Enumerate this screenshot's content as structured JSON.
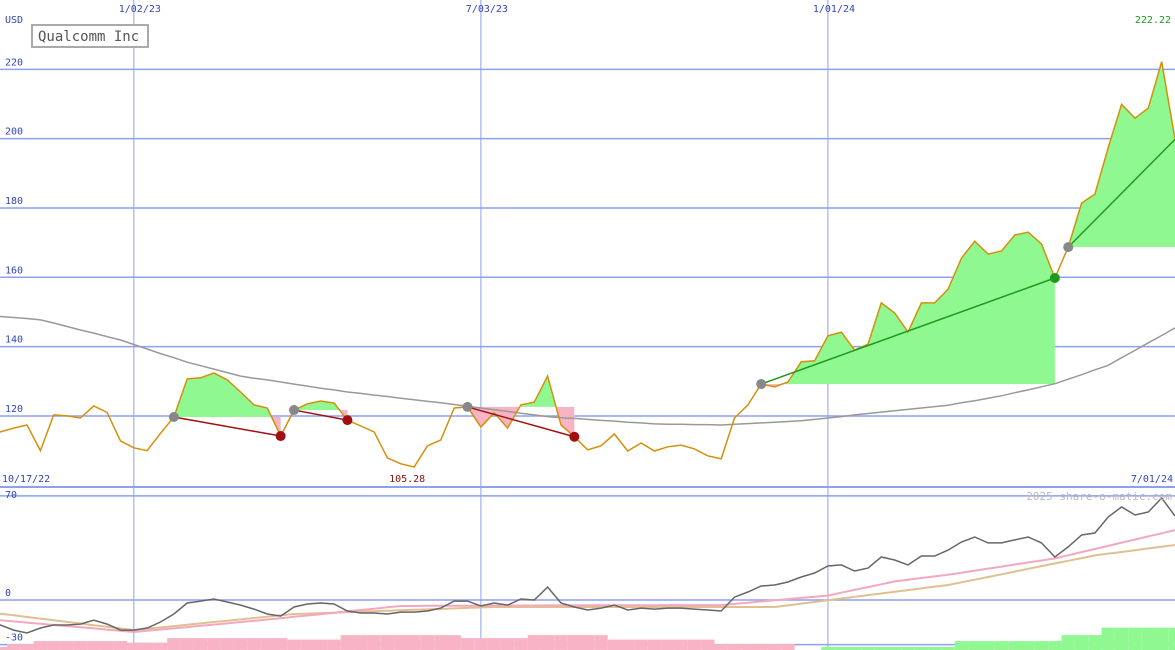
{
  "chart_data": [
    {
      "type": "line",
      "title": "Qualcomm Inc",
      "y_label": "USD",
      "low_label": "105.28",
      "high_label": "222.22",
      "categories": [
        "10/17/22",
        null,
        null,
        null,
        null,
        null,
        null,
        null,
        null,
        null,
        null,
        "1/02/23",
        null,
        null,
        null,
        null,
        null,
        null,
        null,
        null,
        null,
        null,
        null,
        null,
        null,
        null,
        null,
        null,
        null,
        null,
        null,
        null,
        null,
        null,
        null,
        null,
        null,
        "7/03/23",
        null,
        null,
        null,
        null,
        null,
        null,
        null,
        null,
        null,
        null,
        null,
        null,
        null,
        null,
        null,
        null,
        null,
        null,
        null,
        null,
        null,
        null,
        null,
        null,
        null,
        "1/01/24",
        null,
        null,
        null,
        null,
        null,
        null,
        null,
        null,
        null,
        null,
        null,
        null,
        null,
        null,
        null,
        null,
        null,
        null,
        null,
        null,
        null,
        null,
        null,
        null,
        null,
        "7/01/24"
      ],
      "ylim": [
        99.5,
        240
      ],
      "yticks": [
        120,
        140,
        160,
        180,
        200,
        220
      ],
      "grid": true,
      "gain_color": "#90f890",
      "loss_color": "#f8b4c4",
      "start_dot_color": "#888888",
      "series": [
        {
          "color": "#999999",
          "values": [
            149.0,
            148.7,
            148.4,
            148.1,
            147.7,
            146.8,
            145.8,
            144.8,
            143.9,
            142.9,
            141.9,
            140.6,
            139.3,
            138.0,
            136.8,
            135.5,
            134.5,
            133.5,
            132.5,
            131.5,
            130.9,
            130.4,
            129.8,
            129.2,
            128.6,
            128.0,
            127.5,
            126.9,
            126.5,
            126.0,
            125.6,
            125.1,
            124.7,
            124.2,
            123.8,
            123.3,
            122.8,
            122.3,
            121.8,
            121.3,
            120.8,
            120.3,
            119.8,
            119.5,
            119.3,
            119.0,
            118.7,
            118.5,
            118.2,
            118.0,
            117.7,
            117.6,
            117.6,
            117.5,
            117.5,
            117.4,
            117.6,
            117.8,
            118.0,
            118.2,
            118.4,
            118.6,
            119.0,
            119.4,
            119.8,
            120.3,
            120.7,
            121.1,
            121.5,
            121.9,
            122.3,
            122.7,
            123.1,
            123.8,
            124.4,
            125.1,
            125.8,
            126.7,
            127.5,
            128.4,
            129.3,
            130.6,
            131.9,
            133.3,
            134.6,
            136.8,
            138.9,
            141.1,
            143.2,
            145.4
          ]
        },
        {
          "color": "#d4900a",
          "values": [
            113,
            115.4,
            116.5,
            117.4,
            110,
            120.3,
            120,
            119.4,
            122.9,
            121,
            112.8,
            110.8,
            110,
            115,
            119.7,
            130.7,
            131,
            132.4,
            130.4,
            126.9,
            123.2,
            122.3,
            114.2,
            121.7,
            123.5,
            124.3,
            123.7,
            118.8,
            117.1,
            115.4,
            107.9,
            106.2,
            105.28,
            111.4,
            113.1,
            122.3,
            122.6,
            116.8,
            120.9,
            116.5,
            123.2,
            124,
            131.5,
            117.4,
            114,
            110.2,
            111.4,
            114.8,
            109.9,
            112.2,
            109.9,
            111.1,
            111.6,
            110.5,
            108.5,
            107.6,
            119.4,
            123.2,
            129.2,
            128.4,
            129.8,
            135.6,
            135.9,
            143.1,
            144.2,
            139,
            140.7,
            152.6,
            149.7,
            144.2,
            152.6,
            152.6,
            156.6,
            165.5,
            170.4,
            166.7,
            167.6,
            172.2,
            173,
            169.6,
            159.8,
            168.7,
            181.4,
            184,
            197.5,
            209.9,
            205.9,
            208.8,
            222.22,
            199.8
          ]
        }
      ],
      "signals": [
        {
          "start": 14,
          "end": 22,
          "color": "#a01010"
        },
        {
          "start": 23,
          "end": 27,
          "color": "#a01010"
        },
        {
          "start": 36,
          "end": 44,
          "color": "#a01010"
        },
        {
          "start": 58,
          "end": 80,
          "color": "#1f9a1f"
        },
        {
          "start": 81,
          "end": 89,
          "color": "#1f9a1f"
        }
      ]
    },
    {
      "type": "indicator",
      "watermark": "2025 share-o-matic.com",
      "ylim": [
        -33.6,
        76
      ],
      "yticks": [
        -30,
        0,
        70
      ],
      "grid": true,
      "bar_up_color": "#90f890",
      "bar_down_color": "#f8b4c4",
      "bars": [
        -2,
        -2,
        -4,
        -4,
        -6,
        -6,
        -6,
        -6,
        -6,
        -6,
        -6,
        -5,
        -5,
        -5,
        -8,
        -8,
        -8,
        -8,
        -8,
        -8,
        -8,
        -8,
        -8,
        -7,
        -7,
        -7,
        -7,
        -10,
        -10,
        -10,
        -10,
        -10,
        -10,
        -10,
        -10,
        -10,
        -8,
        -8,
        -8,
        -8,
        -8,
        -10,
        -10,
        -10,
        -10,
        -10,
        -10,
        -7,
        -7,
        -7,
        -7,
        -7,
        -7,
        -7,
        -7,
        -4,
        -4,
        -4,
        -4,
        -4,
        -4,
        0,
        0,
        2,
        2,
        2,
        2,
        2,
        2,
        2,
        2,
        2,
        2,
        6,
        6,
        6,
        6,
        6,
        6,
        6,
        6,
        10,
        10,
        10,
        15,
        15,
        15,
        15,
        15,
        15
      ],
      "series": [
        {
          "color": "#e0c090",
          "values": [
            -8.1,
            -9.2,
            -10.3,
            -11.4,
            -12.5,
            -13.6,
            -14.7,
            -15.8,
            -16.9,
            -18.0,
            -19.1,
            -20.2,
            -19.3,
            -18.4,
            -17.5,
            -16.6,
            -15.7,
            -14.8,
            -13.9,
            -13.0,
            -12.1,
            -11.2,
            -10.3,
            -9.4,
            -9.1,
            -8.8,
            -8.5,
            -8.1,
            -7.8,
            -7.5,
            -7.2,
            -6.9,
            -6.6,
            -6.3,
            -6.0,
            -5.6,
            -5.3,
            -5.0,
            -4.7,
            -4.7,
            -4.7,
            -4.7,
            -4.7,
            -4.7,
            -4.7,
            -4.7,
            -4.7,
            -4.7,
            -4.7,
            -4.7,
            -4.7,
            -4.7,
            -4.7,
            -4.7,
            -4.7,
            -4.7,
            -4.7,
            -4.7,
            -4.7,
            -4.7,
            -3.6,
            -2.4,
            -1.3,
            -0.1,
            1.0,
            2.1,
            3.3,
            4.4,
            5.5,
            6.7,
            7.8,
            9.0,
            10.1,
            11.9,
            13.7,
            15.5,
            17.3,
            19.1,
            21.0,
            22.8,
            24.6,
            26.4,
            28.2,
            30.0,
            31.2,
            32.3,
            33.5,
            34.7,
            35.8,
            37.0
          ]
        },
        {
          "color": "#f4a8c0",
          "values": [
            -12.8,
            -13.6,
            -14.4,
            -15.2,
            -16.0,
            -16.8,
            -17.5,
            -18.3,
            -19.1,
            -19.9,
            -20.7,
            -21.5,
            -20.7,
            -19.8,
            -19.0,
            -18.2,
            -17.3,
            -16.5,
            -15.7,
            -14.8,
            -14.0,
            -13.1,
            -12.2,
            -11.3,
            -10.4,
            -9.5,
            -8.5,
            -7.6,
            -6.7,
            -5.8,
            -4.9,
            -4.0,
            -4.0,
            -3.9,
            -3.9,
            -3.8,
            -3.8,
            -3.8,
            -3.7,
            -3.7,
            -3.7,
            -3.7,
            -3.6,
            -3.6,
            -3.6,
            -3.5,
            -3.5,
            -3.5,
            -3.5,
            -3.5,
            -3.5,
            -3.4,
            -3.4,
            -3.4,
            -3.4,
            -3.4,
            -2.6,
            -1.8,
            -1.0,
            -0.2,
            0.6,
            1.4,
            2.2,
            3.0,
            4.9,
            6.8,
            8.7,
            10.6,
            12.5,
            13.6,
            14.8,
            15.9,
            17.0,
            18.4,
            19.8,
            21.1,
            22.5,
            23.9,
            25.3,
            26.6,
            28.0,
            30.1,
            32.2,
            34.3,
            36.4,
            38.6,
            40.7,
            42.8,
            44.9,
            47.0
          ]
        },
        {
          "color": "#666666",
          "values": [
            -16.8,
            -16.8,
            -20.2,
            -22.2,
            -18.8,
            -16.8,
            -16.8,
            -16.2,
            -13.5,
            -16.2,
            -20.2,
            -20.2,
            -18.8,
            -14.8,
            -9.4,
            -2.0,
            -0.7,
            0.7,
            -1.3,
            -3.4,
            -6.1,
            -9.4,
            -10.8,
            -4.7,
            -2.7,
            -2.0,
            -2.7,
            -7.4,
            -8.7,
            -8.7,
            -9.4,
            -8.1,
            -8.1,
            -7.4,
            -5.4,
            -0.7,
            -0.7,
            -4.0,
            -2.0,
            -3.4,
            0.7,
            0,
            8.7,
            -2.0,
            -4.7,
            -6.7,
            -5.4,
            -3.4,
            -6.7,
            -5.4,
            -6.1,
            -5.4,
            -5.4,
            -6.1,
            -6.7,
            -7.4,
            2.0,
            5.4,
            9.4,
            10.1,
            12.1,
            15.5,
            18.2,
            22.9,
            23.6,
            19.5,
            21.5,
            28.9,
            26.9,
            23.6,
            29.6,
            29.6,
            33.6,
            39.0,
            42.4,
            38.4,
            38.4,
            40.4,
            42.4,
            38.4,
            28.9,
            35.7,
            43.7,
            45.1,
            55.9,
            62.6,
            57.2,
            59.2,
            68.6,
            56.5
          ]
        }
      ]
    }
  ]
}
